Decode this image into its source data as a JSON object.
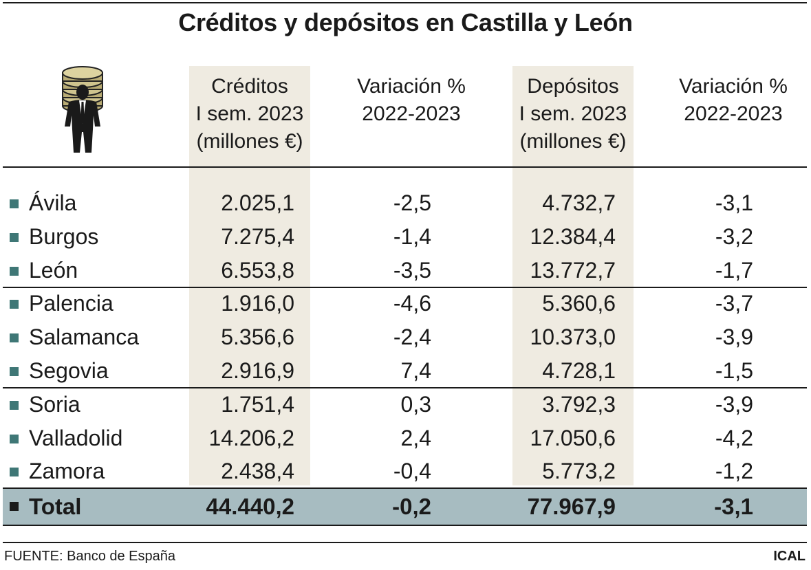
{
  "title": "Créditos y depósitos en Castilla y León",
  "icon": "businessman-with-coins",
  "columns": [
    {
      "lines": [
        "Créditos",
        "I sem. 2023",
        "(millones €)"
      ]
    },
    {
      "lines": [
        "Variación %",
        "2022-2023"
      ]
    },
    {
      "lines": [
        "Depósitos",
        "I sem. 2023",
        "(millones €)"
      ]
    },
    {
      "lines": [
        "Variación %",
        "2022-2023"
      ]
    }
  ],
  "chart_data": {
    "type": "table",
    "title": "Créditos y depósitos en Castilla y León",
    "headers": [
      "",
      "Créditos I sem. 2023 (millones €)",
      "Variación % 2022-2023",
      "Depósitos I sem. 2023 (millones €)",
      "Variación % 2022-2023"
    ],
    "rows": [
      {
        "provincia": "Ávila",
        "creditos": "2.025,1",
        "var_creditos": "-2,5",
        "depositos": "4.732,7",
        "var_depositos": "-3,1"
      },
      {
        "provincia": "Burgos",
        "creditos": "7.275,4",
        "var_creditos": "-1,4",
        "depositos": "12.384,4",
        "var_depositos": "-3,2"
      },
      {
        "provincia": "León",
        "creditos": "6.553,8",
        "var_creditos": "-3,5",
        "depositos": "13.772,7",
        "var_depositos": "-1,7"
      },
      {
        "provincia": "Palencia",
        "creditos": "1.916,0",
        "var_creditos": "-4,6",
        "depositos": "5.360,6",
        "var_depositos": "-3,7"
      },
      {
        "provincia": "Salamanca",
        "creditos": "5.356,6",
        "var_creditos": "-2,4",
        "depositos": "10.373,0",
        "var_depositos": "-3,9"
      },
      {
        "provincia": "Segovia",
        "creditos": "2.916,9",
        "var_creditos": "7,4",
        "depositos": "4.728,1",
        "var_depositos": "-1,5"
      },
      {
        "provincia": "Soria",
        "creditos": "1.751,4",
        "var_creditos": "0,3",
        "depositos": "3.792,3",
        "var_depositos": "-3,9"
      },
      {
        "provincia": "Valladolid",
        "creditos": "14.206,2",
        "var_creditos": "2,4",
        "depositos": "17.050,6",
        "var_depositos": "-4,2"
      },
      {
        "provincia": "Zamora",
        "creditos": "2.438,4",
        "var_creditos": "-0,4",
        "depositos": "5.773,2",
        "var_depositos": "-1,2"
      }
    ],
    "total": {
      "provincia": "Total",
      "creditos": "44.440,2",
      "var_creditos": "-0,2",
      "depositos": "77.967,9",
      "var_depositos": "-3,1"
    }
  },
  "colors": {
    "shade": "#efebe1",
    "total_band": "#a7bcc1",
    "bullet": "#3f7776",
    "text": "#1a1a1a"
  },
  "footer": {
    "source": "FUENTE: Banco de España",
    "brand": "ICAL"
  }
}
